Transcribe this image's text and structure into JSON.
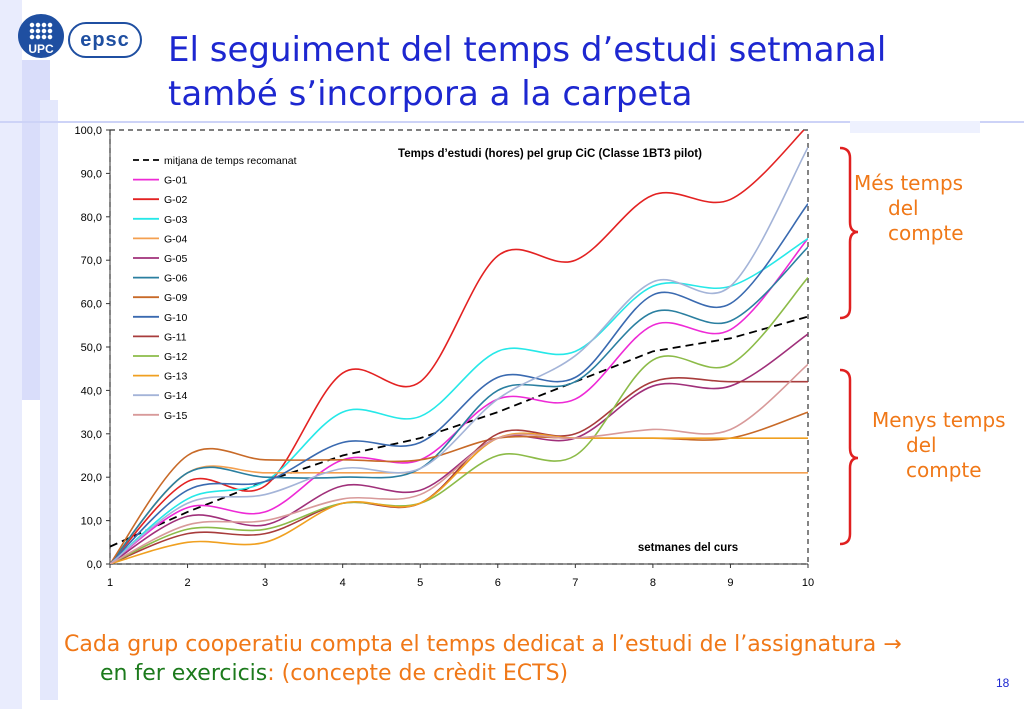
{
  "header": {
    "logo_upc": "UPC",
    "logo_epsc": "epsc",
    "title_line1": "El seguiment del temps d’estudi setmanal",
    "title_line2": "també s’incorpora a la carpeta"
  },
  "annotations": {
    "more_l1": "Més temps",
    "more_l2": "del",
    "more_l3": "compte",
    "less_l1": "Menys temps",
    "less_l2": "del",
    "less_l3": "compte",
    "brace_color": "#e02020",
    "text_color": "#f07818"
  },
  "caption": {
    "line1": "Cada grup cooperatiu compta el temps dedicat a l’estudi de l’assignatura →",
    "line2_green": "en fer exercicis",
    "line2_rest": ": (concepte de crèdit ECTS)"
  },
  "page_number": "18",
  "chart_data": {
    "type": "line",
    "title": "Temps d’estudi (hores) pel grup CiC (Classe 1BT3 pilot)",
    "xlabel": "setmanes del curs",
    "ylabel": "",
    "x": [
      1,
      2,
      3,
      4,
      5,
      6,
      7,
      8,
      9,
      10
    ],
    "xlim": [
      1,
      10
    ],
    "ylim": [
      0,
      100
    ],
    "yticks": [
      "0,0",
      "10,0",
      "20,0",
      "30,0",
      "40,0",
      "50,0",
      "60,0",
      "70,0",
      "80,0",
      "90,0",
      "100,0"
    ],
    "xticks": [
      "1",
      "2",
      "3",
      "4",
      "5",
      "6",
      "7",
      "8",
      "9",
      "10"
    ],
    "legend": "top-left",
    "grid": false,
    "series": [
      {
        "name": "mitjana de temps recomanat",
        "color": "#000000",
        "dashed": true,
        "values": [
          4,
          12,
          19,
          25,
          29,
          35,
          42,
          49,
          52,
          57
        ]
      },
      {
        "name": "G-01",
        "color": "#ee2ad6",
        "values": [
          0,
          13,
          12,
          24,
          24,
          38,
          38,
          55,
          54,
          75
        ]
      },
      {
        "name": "G-02",
        "color": "#e32222",
        "values": [
          0,
          19,
          18,
          44,
          42,
          71,
          70,
          85,
          84,
          101
        ]
      },
      {
        "name": "G-03",
        "color": "#26e8e8",
        "values": [
          0,
          15,
          19,
          35,
          34,
          49,
          49,
          64,
          64,
          75
        ]
      },
      {
        "name": "G-04",
        "color": "#f4a050",
        "values": [
          0,
          21,
          21,
          21,
          21,
          21,
          21,
          21,
          21,
          21
        ]
      },
      {
        "name": "G-05",
        "color": "#a0307a",
        "values": [
          0,
          11,
          9,
          18,
          17,
          29,
          29,
          41,
          41,
          53
        ]
      },
      {
        "name": "G-06",
        "color": "#2a7fa0",
        "values": [
          0,
          21,
          20,
          20,
          22,
          40,
          42,
          58,
          56,
          73
        ]
      },
      {
        "name": "G-09",
        "color": "#c86a28",
        "values": [
          0,
          25,
          24,
          24,
          24,
          29,
          29,
          29,
          29,
          35
        ]
      },
      {
        "name": "G-10",
        "color": "#3a6ab0",
        "values": [
          0,
          17,
          19,
          28,
          28,
          43,
          43,
          62,
          60,
          83
        ]
      },
      {
        "name": "G-11",
        "color": "#a83c3c",
        "values": [
          0,
          7,
          7,
          14,
          14,
          30,
          30,
          42,
          42,
          42
        ]
      },
      {
        "name": "G-12",
        "color": "#8cbb48",
        "values": [
          0,
          8,
          8,
          14,
          14,
          25,
          25,
          47,
          46,
          66
        ]
      },
      {
        "name": "G-13",
        "color": "#f0a020",
        "values": [
          0,
          5,
          5,
          14,
          14,
          29,
          29,
          29,
          29,
          29
        ]
      },
      {
        "name": "G-14",
        "color": "#a4b4d8",
        "values": [
          0,
          14,
          16,
          22,
          22,
          38,
          48,
          65,
          64,
          96
        ]
      },
      {
        "name": "G-15",
        "color": "#d89a9a",
        "values": [
          0,
          9,
          10,
          15,
          16,
          29,
          29,
          31,
          31,
          46
        ]
      }
    ]
  }
}
